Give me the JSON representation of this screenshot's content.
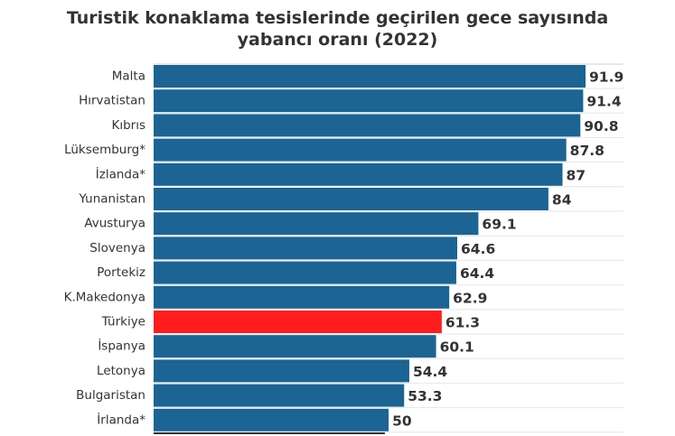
{
  "title": {
    "line1": "Turistik konaklama tesislerinde geçirilen gece sayısında",
    "line2": "yabancı oranı (2022)"
  },
  "colors": {
    "bar": "#1b6494",
    "highlight": "#ff1c1c",
    "grid": "#e6e6e6",
    "label": "#333333"
  },
  "chart_data": {
    "type": "bar",
    "orientation": "horizontal",
    "title": "Turistik konaklama tesislerinde geçirilen gece sayısında yabancı oranı (2022)",
    "categories": [
      "Malta",
      "Hırvatistan",
      "Kıbrıs",
      "Lüksemburg*",
      "İzlanda*",
      "Yunanistan",
      "Avusturya",
      "Slovenya",
      "Portekiz",
      "K.Makedonya",
      "Türkiye",
      "İspanya",
      "Letonya",
      "Bulgaristan",
      "İrlanda*"
    ],
    "values": [
      91.9,
      91.4,
      90.8,
      87.8,
      87,
      84,
      69.1,
      64.6,
      64.4,
      62.9,
      61.3,
      60.1,
      54.4,
      53.3,
      50
    ],
    "value_labels": [
      "91.9",
      "91.4",
      "90.8",
      "87.8",
      "87",
      "84",
      "69.1",
      "64.6",
      "64.4",
      "62.9",
      "61.3",
      "60.1",
      "54.4",
      "53.3",
      "50"
    ],
    "highlight_category": "Türkiye",
    "xlim": [
      0,
      100
    ],
    "grid": true,
    "xlabel": "",
    "ylabel": ""
  }
}
